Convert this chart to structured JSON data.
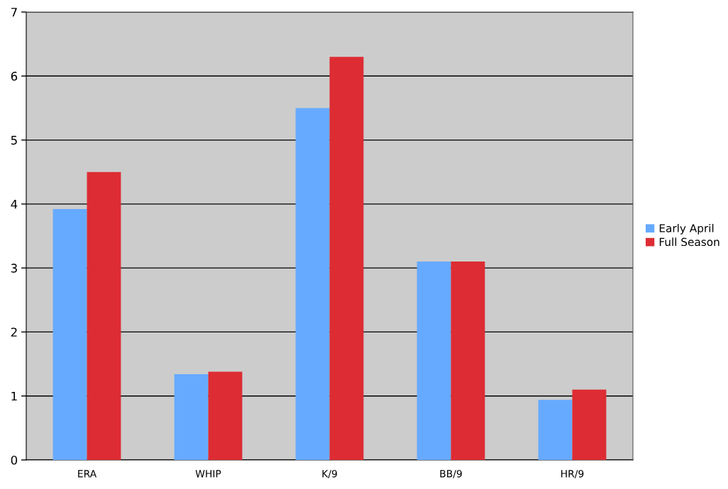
{
  "chart_data": {
    "type": "bar",
    "categories": [
      "ERA",
      "WHIP",
      "K/9",
      "BB/9",
      "HR/9"
    ],
    "series": [
      {
        "name": "Early April",
        "color": "#66aaff",
        "values": [
          3.92,
          1.34,
          5.5,
          3.1,
          0.94
        ]
      },
      {
        "name": "Full Season",
        "color": "#dd2c33",
        "values": [
          4.5,
          1.38,
          6.3,
          3.1,
          1.1
        ]
      }
    ],
    "ylim": [
      0,
      7
    ],
    "yticks": [
      0,
      1,
      2,
      3,
      4,
      5,
      6,
      7
    ],
    "grid": "y",
    "legend": "right"
  }
}
